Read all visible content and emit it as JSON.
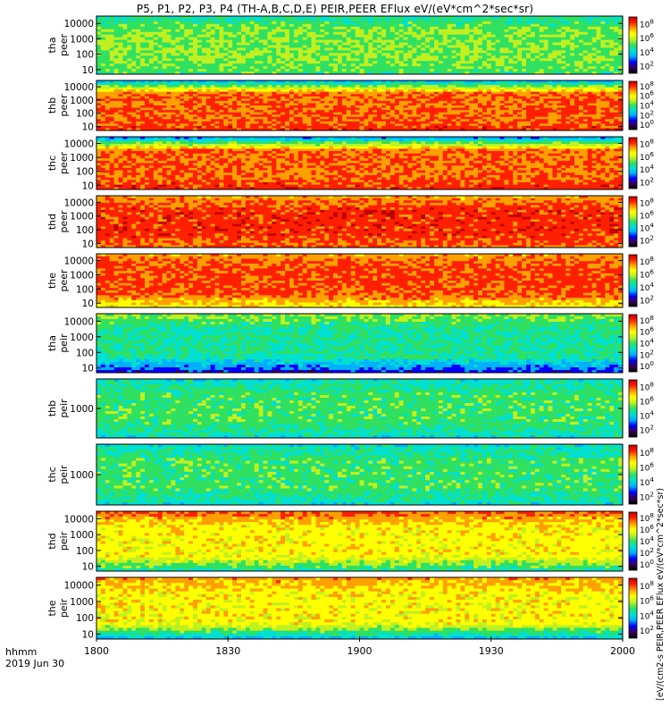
{
  "title": "P5, P1, P2, P3, P4 (TH-A,B,C,D,E) PEIR,PEER EFlux eV/(eV*cm^2*sec*sr)",
  "colorbar_unit_label": "[eV/(cm2-s",
  "colorbar_overflow_text": "PEIR,PEER EFlux eV/(eV*cm^2*sec*sr)",
  "xaxis": {
    "label_line1": "hhmm",
    "label_line2": "2019 Jun 30",
    "ticks": [
      "1800",
      "1830",
      "1900",
      "1930",
      "2000"
    ]
  },
  "colorbar_ticks": [
    "10",
    "10",
    "10",
    "10",
    "10"
  ],
  "colorbar_tick_exponents": [
    "2",
    "4",
    "6",
    "8",
    "0"
  ],
  "palette": [
    "#000000",
    "#3a005a",
    "#0000ff",
    "#00b0ff",
    "#00e0d0",
    "#30e060",
    "#c0f020",
    "#ffff00",
    "#ffa000",
    "#ff2000",
    "#c00000"
  ],
  "chart_data": {
    "type": "heatmap",
    "xlim": [
      "1800",
      "2000"
    ],
    "colorbar_scale": "log",
    "colorbar_range": [
      "10^2",
      "10^8"
    ],
    "panels": [
      {
        "name_line1": "tha",
        "name_line2": "peer",
        "yticks": [
          "10000",
          "1000",
          "100",
          "10"
        ],
        "ylim": [
          5,
          30000
        ],
        "yscale": "log",
        "colorbar_ticks": [
          "10^8",
          "10^6",
          "10^4",
          "10^2"
        ],
        "level": 0.55,
        "bottom_band": 0.5,
        "top_band": 0.45
      },
      {
        "name_line1": "thb",
        "name_line2": "peer",
        "yticks": [
          "10000",
          "1000",
          "100",
          "10"
        ],
        "ylim": [
          5,
          30000
        ],
        "yscale": "log",
        "colorbar_ticks": [
          "10^8",
          "10^6",
          "10^4",
          "10^2",
          "10^0"
        ],
        "level": 0.85,
        "bottom_band": 0.9,
        "top_band": 0.35
      },
      {
        "name_line1": "thc",
        "name_line2": "peer",
        "yticks": [
          "10000",
          "1000",
          "100",
          "10"
        ],
        "ylim": [
          5,
          30000
        ],
        "yscale": "log",
        "colorbar_ticks": [
          "10^8",
          "10^6",
          "10^4",
          "10^2"
        ],
        "level": 0.85,
        "bottom_band": 0.9,
        "top_band": 0.3
      },
      {
        "name_line1": "thd",
        "name_line2": "peer",
        "yticks": [
          "10000",
          "1000",
          "100",
          "10"
        ],
        "ylim": [
          5,
          30000
        ],
        "yscale": "log",
        "colorbar_ticks": [
          "10^8",
          "10^6",
          "10^4",
          "10^2"
        ],
        "level": 0.9,
        "bottom_band": 0.85,
        "top_band": 0.8
      },
      {
        "name_line1": "the",
        "name_line2": "peer",
        "yticks": [
          "10000",
          "1000",
          "100",
          "10"
        ],
        "ylim": [
          5,
          30000
        ],
        "yscale": "log",
        "colorbar_ticks": [
          "10^8",
          "10^6",
          "10^4",
          "10^2"
        ],
        "level": 0.88,
        "bottom_band": 0.7,
        "top_band": 0.8
      },
      {
        "name_line1": "tha",
        "name_line2": "peir",
        "yticks": [
          "10000",
          "1000",
          "100",
          "10"
        ],
        "ylim": [
          5,
          30000
        ],
        "yscale": "log",
        "colorbar_ticks": [
          "10^8",
          "10^6",
          "10^4",
          "10^2",
          "10^0"
        ],
        "level": 0.45,
        "bottom_band": 0.2,
        "top_band": 0.55
      },
      {
        "name_line1": "thb",
        "name_line2": "peir",
        "yticks": [
          "1000"
        ],
        "ylim": [
          5,
          30000
        ],
        "yscale": "log",
        "colorbar_ticks": [
          "10^8",
          "10^6",
          "10^4",
          "10^2"
        ],
        "level": 0.5,
        "bottom_band": 0.4,
        "top_band": 0.4
      },
      {
        "name_line1": "thc",
        "name_line2": "peir",
        "yticks": [
          "1000"
        ],
        "ylim": [
          5,
          30000
        ],
        "yscale": "log",
        "colorbar_ticks": [
          "10^8",
          "10^6",
          "10^4",
          "10^2"
        ],
        "level": 0.5,
        "bottom_band": 0.4,
        "top_band": 0.4
      },
      {
        "name_line1": "thd",
        "name_line2": "peir",
        "yticks": [
          "10000",
          "1000",
          "100",
          "10"
        ],
        "ylim": [
          5,
          30000
        ],
        "yscale": "log",
        "colorbar_ticks": [
          "10^8",
          "10^6",
          "10^4",
          "10^2",
          "10^0"
        ],
        "level": 0.7,
        "bottom_band": 0.45,
        "top_band": 0.85
      },
      {
        "name_line1": "the",
        "name_line2": "peir",
        "yticks": [
          "10000",
          "1000",
          "100",
          "10"
        ],
        "ylim": [
          5,
          30000
        ],
        "yscale": "log",
        "colorbar_ticks": [
          "10^8",
          "10^6",
          "10^4",
          "10^2"
        ],
        "level": 0.7,
        "bottom_band": 0.35,
        "top_band": 0.8
      }
    ]
  }
}
